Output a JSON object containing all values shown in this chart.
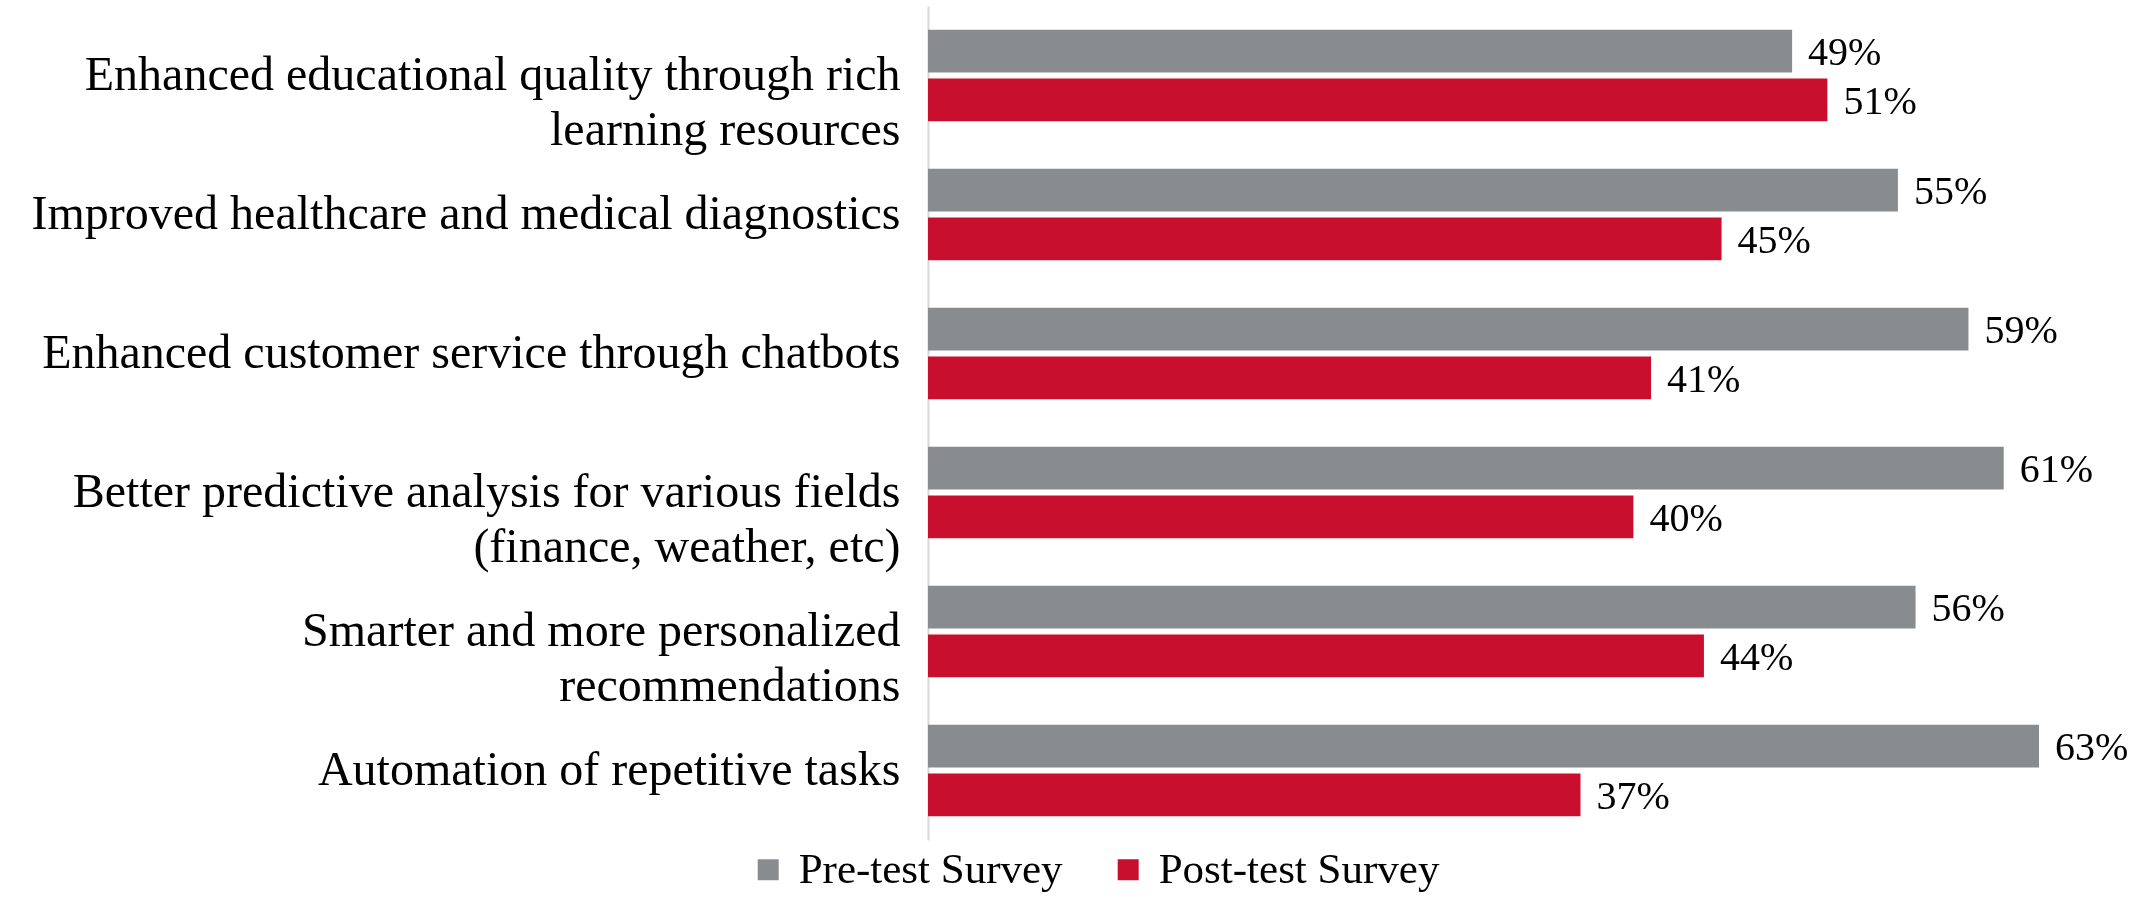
{
  "chart_data": {
    "type": "bar",
    "orientation": "horizontal",
    "categories": [
      "Enhanced educational quality through rich learning resources",
      "Improved healthcare and medical diagnostics",
      "Enhanced customer service through chatbots",
      "Better predictive analysis for various fields (finance, weather, etc)",
      "Smarter and more personalized recommendations",
      "Automation of repetitive tasks"
    ],
    "series": [
      {
        "name": "Pre-test Survey",
        "color": "#898c8f",
        "values": [
          49,
          55,
          59,
          61,
          56,
          63
        ],
        "value_labels": [
          "49%",
          "55%",
          "59%",
          "61%",
          "56%",
          "63%"
        ]
      },
      {
        "name": "Post-test Survey",
        "color": "#c8102e",
        "values": [
          51,
          45,
          41,
          40,
          44,
          37
        ],
        "value_labels": [
          "51%",
          "45%",
          "41%",
          "40%",
          "44%",
          "37%"
        ]
      }
    ],
    "legend": "bottom",
    "tick_labels": "y"
  }
}
